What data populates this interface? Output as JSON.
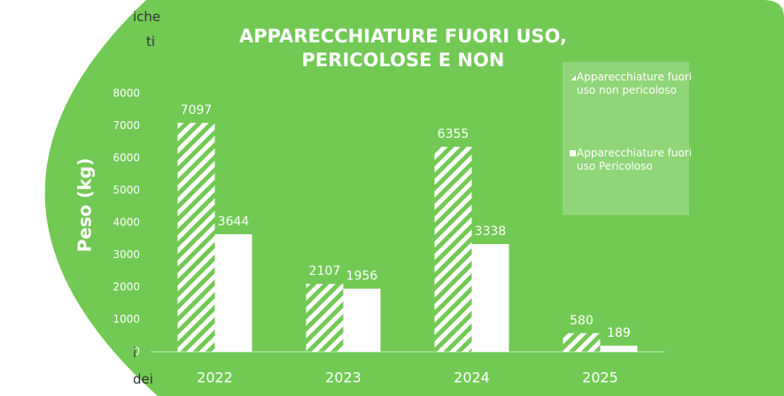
{
  "side_text": [
    "iche",
    "ti",
    "i",
    "dei"
  ],
  "chart_data": {
    "type": "bar",
    "title": "APPARECCHIATURE FUORI USO, PERICOLOSE E NON",
    "ylabel": "Peso (kg)",
    "categories": [
      "2022",
      "2023",
      "2024",
      "2025"
    ],
    "series": [
      {
        "name": "Apparecchiature fuori uso non pericoloso",
        "color": "#ffffff",
        "pattern": "hatch",
        "values": [
          7097,
          2107,
          6355,
          580
        ]
      },
      {
        "name": "Apparecchiature fuori uso Pericoloso",
        "color": "#ffffff",
        "pattern": "solid",
        "values": [
          3644,
          1956,
          3338,
          189
        ]
      }
    ],
    "ylim": [
      0,
      8000
    ],
    "yticks": [
      0,
      1000,
      2000,
      3000,
      4000,
      5000,
      6000,
      7000,
      8000
    ],
    "grid": false,
    "legend": "upper right"
  }
}
